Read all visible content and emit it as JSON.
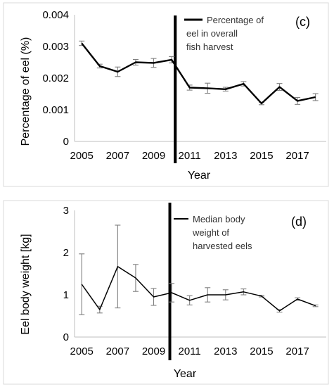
{
  "chart_data": [
    {
      "type": "line",
      "panel_label": "(c)",
      "title": "",
      "xlabel": "Year",
      "ylabel": "Percentage of eel (%)",
      "x": [
        2005,
        2006,
        2007,
        2008,
        2009,
        2010,
        2011,
        2012,
        2013,
        2014,
        2015,
        2016,
        2017,
        2018
      ],
      "series": [
        {
          "name": "Percentage of eel in overall fish harvest",
          "values": [
            0.0031,
            0.00238,
            0.0022,
            0.0025,
            0.00248,
            0.00258,
            0.0017,
            0.00168,
            0.00165,
            0.00182,
            0.0012,
            0.00172,
            0.00128,
            0.0014
          ],
          "error": [
            7e-05,
            6e-05,
            0.00015,
            9e-05,
            0.00014,
            0.0001,
            8e-05,
            0.00016,
            6e-05,
            7e-05,
            4e-05,
            0.00011,
            0.00011,
            0.00011
          ]
        }
      ],
      "legend": [
        "Percentage of",
        "eel in overall",
        "fish harvest"
      ],
      "legend_position": "top-right",
      "x_tick_labels": [
        "2005",
        "2007",
        "2009",
        "2011",
        "2013",
        "2015",
        "2017"
      ],
      "y_tick_labels": [
        "0",
        "0.001",
        "0.002",
        "0.003",
        "0.004"
      ],
      "xlim": [
        2004.6,
        2018.6
      ],
      "ylim": [
        0,
        0.004
      ],
      "vertical_line_x": 2010.2,
      "grid": false
    },
    {
      "type": "line",
      "panel_label": "(d)",
      "title": "",
      "xlabel": "Year",
      "ylabel": "Eel body weight [kg]",
      "x": [
        2005,
        2006,
        2007,
        2008,
        2009,
        2010,
        2011,
        2012,
        2013,
        2014,
        2015,
        2016,
        2017,
        2018
      ],
      "series": [
        {
          "name": "Median body weight of harvested eels",
          "values": [
            1.25,
            0.65,
            1.67,
            1.4,
            0.95,
            1.05,
            0.87,
            1.0,
            1.0,
            1.07,
            0.97,
            0.62,
            0.9,
            0.74
          ],
          "error": [
            0.72,
            0.08,
            0.98,
            0.32,
            0.2,
            0.22,
            0.11,
            0.17,
            0.12,
            0.07,
            0.02,
            0.03,
            0.03,
            0.02
          ]
        }
      ],
      "legend": [
        "Median body",
        "weight of",
        "harvested eels"
      ],
      "legend_position": "top-right",
      "x_tick_labels": [
        "2005",
        "2007",
        "2009",
        "2011",
        "2013",
        "2015",
        "2017"
      ],
      "y_tick_labels": [
        "0",
        "1",
        "2",
        "3"
      ],
      "xlim": [
        2004.6,
        2018.6
      ],
      "ylim": [
        0,
        3
      ],
      "vertical_line_x": 2009.9,
      "grid": false
    }
  ]
}
